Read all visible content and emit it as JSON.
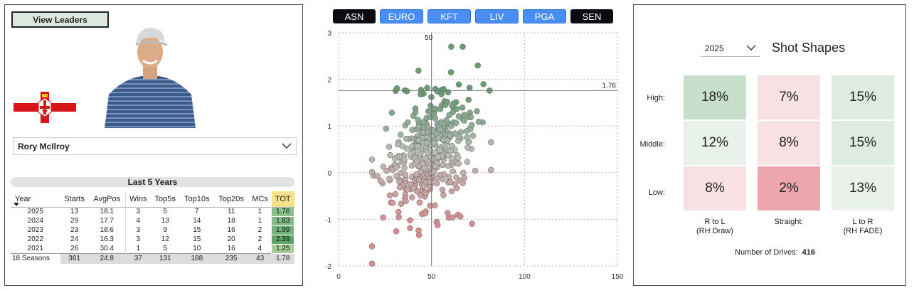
{
  "left": {
    "view_leaders_label": "View Leaders",
    "player_name": "Rory McIlroy",
    "last5_title": "Last 5 Years",
    "columns": [
      "Year",
      "Starts",
      "AvgPos",
      "Wins",
      "Top5s",
      "Top10s",
      "Top20s",
      "MCs",
      "TOT"
    ],
    "rows": [
      [
        "2025",
        "13",
        "18.1",
        "3",
        "5",
        "7",
        "11",
        "1",
        "1.76"
      ],
      [
        "2024",
        "29",
        "17.7",
        "4",
        "13",
        "14",
        "18",
        "1",
        "1.83"
      ],
      [
        "2023",
        "23",
        "18.6",
        "3",
        "9",
        "15",
        "16",
        "2",
        "1.99"
      ],
      [
        "2022",
        "24",
        "16.3",
        "3",
        "12",
        "15",
        "20",
        "2",
        "2.39"
      ],
      [
        "2021",
        "26",
        "30.4",
        "1",
        "5",
        "10",
        "16",
        "4",
        "1.25"
      ]
    ],
    "tot_colors": [
      "#8bbf8e",
      "#84ba88",
      "#77b37c",
      "#5fa666",
      "#a6cc97"
    ],
    "total_row": [
      "18 Seasons",
      "361",
      "24.8",
      "37",
      "131",
      "188",
      "235",
      "43",
      "1.78"
    ],
    "colors": {
      "tot_header": "#f6e08a",
      "button_bg": "#dbe7df"
    }
  },
  "tours": [
    {
      "label": "ASN",
      "style": "dark"
    },
    {
      "label": "EURO",
      "style": "blue"
    },
    {
      "label": "KFT",
      "style": "blue"
    },
    {
      "label": "LIV",
      "style": "blue"
    },
    {
      "label": "PGA",
      "style": "blue"
    },
    {
      "label": "SEN",
      "style": "dark"
    }
  ],
  "chart_data": {
    "type": "scatter",
    "x_ticks": [
      "0",
      "50",
      "100",
      "150"
    ],
    "y_ticks": [
      "3",
      "2",
      "1",
      "0",
      "-1",
      "-2"
    ],
    "xlim": [
      0,
      150
    ],
    "ylim": [
      -2,
      3
    ],
    "ref_x": 50,
    "ref_x_label": "50",
    "ref_y": 1.76,
    "ref_y_label": "1.76",
    "grid": true,
    "points": {
      "count": 416,
      "x_center": 49,
      "x_spread": 11,
      "y_center": 0.45,
      "y_spread": 0.75
    },
    "colors": {
      "high": "#6a9c74",
      "mid": "#b9bdb9",
      "low": "#d98b8d"
    }
  },
  "right": {
    "year_value": "2025",
    "title": "Shot Shapes",
    "row_labels": [
      "High:",
      "Middle:",
      "Low:"
    ],
    "col_labels": [
      [
        "R to L",
        "(RH Draw)"
      ],
      [
        "Straight:",
        ""
      ],
      [
        "L to R",
        "(RH FADE)"
      ]
    ],
    "cells": [
      [
        "18%",
        "7%",
        "15%"
      ],
      [
        "12%",
        "8%",
        "15%"
      ],
      [
        "8%",
        "2%",
        "13%"
      ]
    ],
    "cell_colors": [
      [
        "#c8dfcc",
        "#f8e1e3",
        "#deebe0"
      ],
      [
        "#e8f1ea",
        "#f8e1e3",
        "#deebe0"
      ],
      [
        "#f8e1e3",
        "#eda6ab",
        "#e8f1ea"
      ]
    ],
    "drives_label": "Number of Drives:",
    "drives_value": "416"
  }
}
